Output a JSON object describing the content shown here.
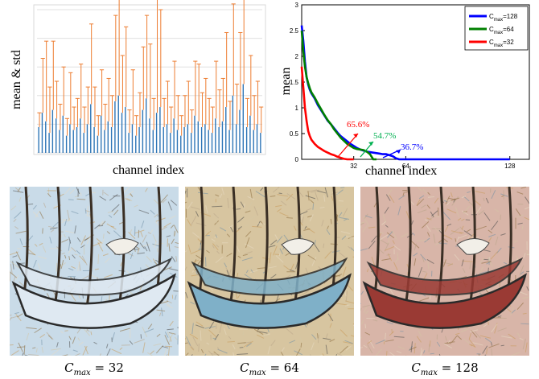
{
  "chart_data": [
    {
      "type": "bar",
      "title": "",
      "xlabel": "channel index",
      "ylabel": "mean & std",
      "grid": true,
      "legend": "none",
      "colors": {
        "mean": "#2e75b6",
        "std": "#ed7d31"
      },
      "mean": [
        0.9,
        1.4,
        1.1,
        0.7,
        1.5,
        1.2,
        0.8,
        1.3,
        0.6,
        1.0,
        0.8,
        0.9,
        1.2,
        0.7,
        1.0,
        1.7,
        0.9,
        0.6,
        1.3,
        0.8,
        1.1,
        0.9,
        1.8,
        2.0,
        1.4,
        1.6,
        0.7,
        1.0,
        0.6,
        0.9,
        1.5,
        1.9,
        1.2,
        0.8,
        1.4,
        1.6,
        0.9,
        1.0,
        0.7,
        1.2,
        0.8,
        0.6,
        0.9,
        1.0,
        0.7,
        1.3,
        1.1,
        0.9,
        1.0,
        0.8,
        0.7,
        1.2,
        0.9,
        1.1,
        1.6,
        0.8,
        2.0,
        1.0,
        1.5,
        2.4,
        0.9,
        1.3,
        0.8,
        1.0,
        0.7
      ],
      "std": [
        0.5,
        1.9,
        2.8,
        1.6,
        2.4,
        1.3,
        0.9,
        1.7,
        0.6,
        1.8,
        0.8,
        1.0,
        1.9,
        0.9,
        1.3,
        2.8,
        1.4,
        0.7,
        1.6,
        0.9,
        1.5,
        1.1,
        3.0,
        3.7,
        2.0,
        2.8,
        0.8,
        1.9,
        0.7,
        1.2,
        2.2,
        2.9,
        2.6,
        1.1,
        4.5,
        3.4,
        1.0,
        1.5,
        0.9,
        2.0,
        1.2,
        0.7,
        1.1,
        1.5,
        0.8,
        1.9,
        2.0,
        1.2,
        1.6,
        1.1,
        0.9,
        2.0,
        1.3,
        1.5,
        2.6,
        1.0,
        3.2,
        1.4,
        2.7,
        3.9,
        1.0,
        2.1,
        1.2,
        1.5,
        0.9
      ]
    },
    {
      "type": "line",
      "title": "",
      "xlabel": "channel index",
      "ylabel": "mean",
      "xlim": [
        0,
        140
      ],
      "ylim": [
        0,
        3
      ],
      "xticks": [
        32,
        64,
        128
      ],
      "yticks": [
        0,
        0.5,
        1,
        1.5,
        2,
        2.5,
        3
      ],
      "legend": "top-right",
      "series": [
        {
          "name": "C_max=128",
          "color": "#0000ff",
          "x": [
            0,
            1,
            2,
            3,
            4,
            5,
            6,
            8,
            10,
            12,
            14,
            16,
            18,
            20,
            22,
            24,
            26,
            28,
            30,
            32,
            34,
            36,
            38,
            40,
            42,
            44,
            46,
            48,
            50,
            52,
            54,
            56,
            58,
            60,
            62,
            64,
            96,
            128
          ],
          "y": [
            2.6,
            2.3,
            1.9,
            1.6,
            1.45,
            1.35,
            1.28,
            1.18,
            1.05,
            0.95,
            0.85,
            0.75,
            0.68,
            0.6,
            0.52,
            0.45,
            0.4,
            0.35,
            0.3,
            0.26,
            0.22,
            0.19,
            0.17,
            0.15,
            0.14,
            0.13,
            0.12,
            0.11,
            0.1,
            0.1,
            0.08,
            0.06,
            0.02,
            0,
            0,
            0,
            0,
            0
          ]
        },
        {
          "name": "C_max=64",
          "color": "#008000",
          "x": [
            0,
            1,
            2,
            3,
            4,
            5,
            6,
            8,
            10,
            12,
            14,
            16,
            18,
            20,
            22,
            24,
            26,
            28,
            30,
            32,
            34,
            36,
            38,
            40,
            42,
            44,
            46
          ],
          "y": [
            2.5,
            2.1,
            1.8,
            1.6,
            1.48,
            1.38,
            1.3,
            1.2,
            1.08,
            0.97,
            0.86,
            0.76,
            0.68,
            0.58,
            0.5,
            0.42,
            0.36,
            0.3,
            0.26,
            0.22,
            0.2,
            0.19,
            0.18,
            0.15,
            0.1,
            0,
            0
          ]
        },
        {
          "name": "C_max=32",
          "color": "#ff0000",
          "x": [
            0,
            1,
            2,
            3,
            4,
            5,
            6,
            8,
            10,
            12,
            14,
            16,
            18,
            20,
            22,
            24,
            26,
            28,
            30,
            32
          ],
          "y": [
            1.8,
            1.4,
            1.0,
            0.75,
            0.55,
            0.45,
            0.38,
            0.3,
            0.24,
            0.2,
            0.16,
            0.13,
            0.1,
            0.08,
            0.05,
            0.03,
            0.01,
            0,
            0,
            0
          ]
        }
      ],
      "annotations": [
        {
          "text": "65.6%",
          "color": "#ff0000"
        },
        {
          "text": "54.7%",
          "color": "#00b050"
        },
        {
          "text": "36.7%",
          "color": "#0000ff"
        }
      ]
    }
  ],
  "legend": [
    {
      "base": "C",
      "sub": "max",
      "suffix": "=128",
      "color": "#0000ff"
    },
    {
      "base": "C",
      "sub": "max",
      "suffix": "=64",
      "color": "#008000"
    },
    {
      "base": "C",
      "sub": "max",
      "suffix": "=32",
      "color": "#ff0000"
    }
  ],
  "images": [
    {
      "caption_base": "C",
      "caption_sub": "max",
      "caption_suffix": " = 32",
      "tint": "#c9dbe8",
      "boat": "#dfe9f2"
    },
    {
      "caption_base": "C",
      "caption_sub": "max",
      "caption_suffix": " = 64",
      "tint": "#d7c5a0",
      "boat": "#7fb0c8"
    },
    {
      "caption_base": "C",
      "caption_sub": "max",
      "caption_suffix": " = 128",
      "tint": "#d8b5a8",
      "boat": "#9a3a34"
    }
  ]
}
